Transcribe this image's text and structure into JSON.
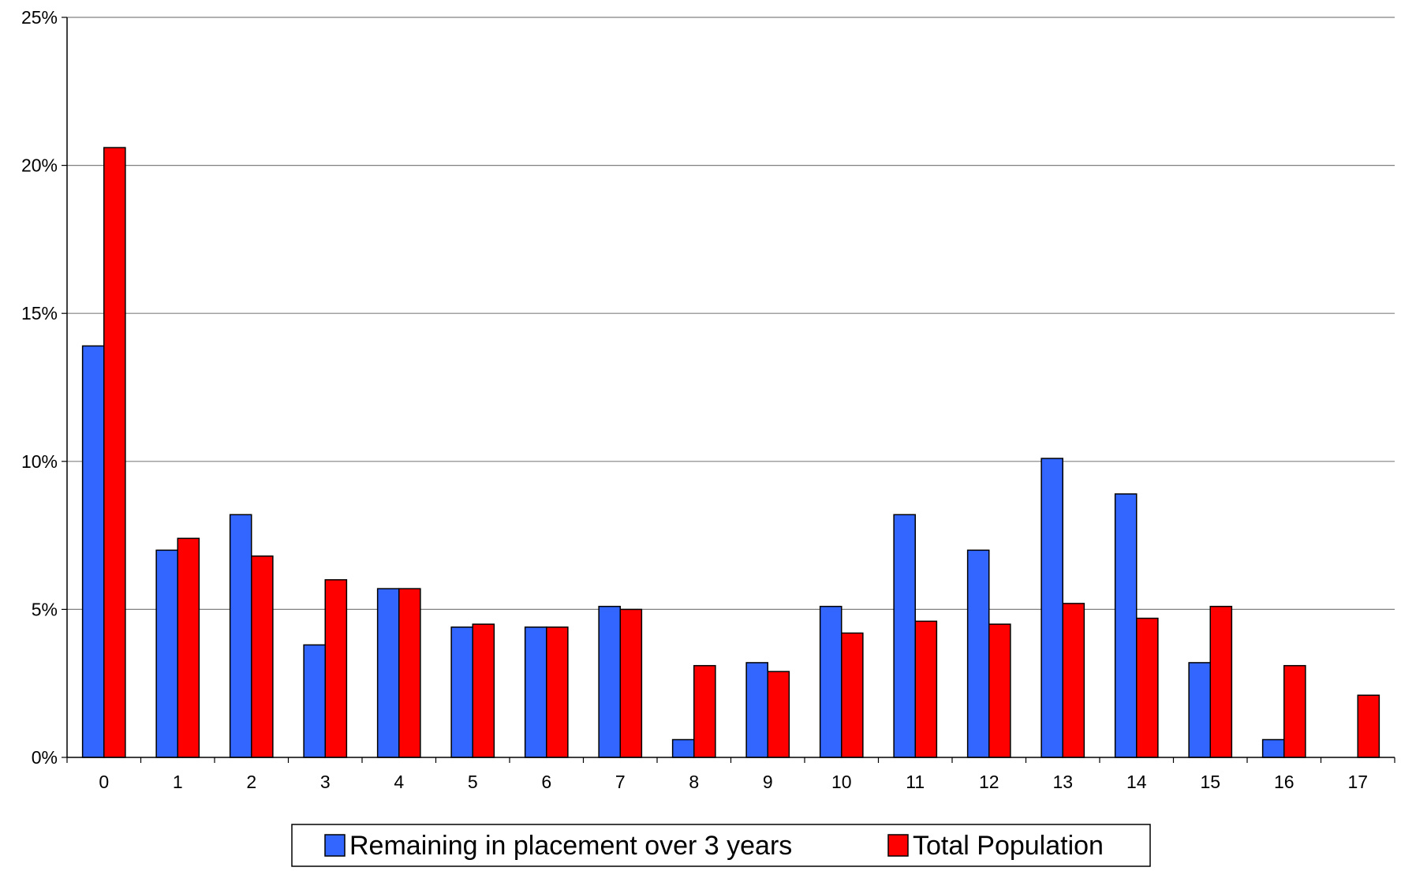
{
  "chart_data": {
    "type": "bar",
    "categories": [
      "0",
      "1",
      "2",
      "3",
      "4",
      "5",
      "6",
      "7",
      "8",
      "9",
      "10",
      "11",
      "12",
      "13",
      "14",
      "15",
      "16",
      "17"
    ],
    "series": [
      {
        "name": "Remaining in placement over 3 years",
        "color": "#3366ff",
        "values": [
          13.9,
          7.0,
          8.2,
          3.8,
          5.7,
          4.4,
          4.4,
          5.1,
          0.6,
          3.2,
          5.1,
          8.2,
          7.0,
          10.1,
          8.9,
          3.2,
          0.6,
          0
        ]
      },
      {
        "name": "Total Population",
        "color": "#ff0000",
        "values": [
          20.6,
          7.4,
          6.8,
          6.0,
          5.7,
          4.5,
          4.4,
          5.0,
          3.1,
          2.9,
          4.2,
          4.6,
          4.5,
          5.2,
          4.7,
          5.1,
          3.1,
          2.1
        ]
      }
    ],
    "ylim": [
      0,
      25
    ],
    "yticks": [
      "0%",
      "5%",
      "10%",
      "15%",
      "20%",
      "25%"
    ],
    "ytick_values": [
      0,
      5,
      10,
      15,
      20,
      25
    ],
    "grid": true,
    "legend_position": "bottom"
  }
}
